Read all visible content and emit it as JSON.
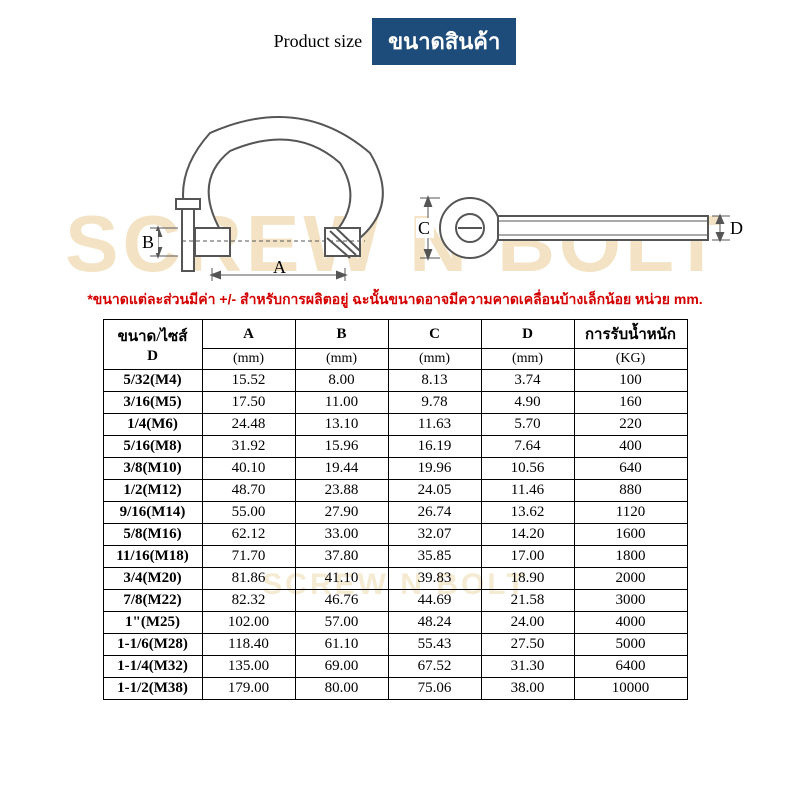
{
  "header": {
    "product_size_en": "Product size",
    "product_size_th": "ขนาดสินค้า"
  },
  "watermark": "SCREW N BOLT",
  "diagram": {
    "labels": {
      "A": "A",
      "B": "B",
      "C": "C",
      "D": "D"
    },
    "stroke": "#555555",
    "fill_hatch": "#cccccc"
  },
  "note": "*ขนาดแต่ละส่วนมีค่า +/- สำหรับการผลิตอยู่ ฉะนั้นขนาดอาจมีความคาดเคลื่อนบ้างเล็กน้อย หน่วย mm.",
  "table": {
    "head_size": "ขนาด/ไซส์\nD",
    "head_A": "A",
    "head_B": "B",
    "head_C": "C",
    "head_D": "D",
    "head_kg": "การรับน้ำหนัก",
    "unit_mm": "(mm)",
    "unit_kg": "(KG)",
    "rows": [
      {
        "size": "5/32(M4)",
        "A": "15.52",
        "B": "8.00",
        "C": "8.13",
        "D": "3.74",
        "KG": "100"
      },
      {
        "size": "3/16(M5)",
        "A": "17.50",
        "B": "11.00",
        "C": "9.78",
        "D": "4.90",
        "KG": "160"
      },
      {
        "size": "1/4(M6)",
        "A": "24.48",
        "B": "13.10",
        "C": "11.63",
        "D": "5.70",
        "KG": "220"
      },
      {
        "size": "5/16(M8)",
        "A": "31.92",
        "B": "15.96",
        "C": "16.19",
        "D": "7.64",
        "KG": "400"
      },
      {
        "size": "3/8(M10)",
        "A": "40.10",
        "B": "19.44",
        "C": "19.96",
        "D": "10.56",
        "KG": "640"
      },
      {
        "size": "1/2(M12)",
        "A": "48.70",
        "B": "23.88",
        "C": "24.05",
        "D": "11.46",
        "KG": "880"
      },
      {
        "size": "9/16(M14)",
        "A": "55.00",
        "B": "27.90",
        "C": "26.74",
        "D": "13.62",
        "KG": "1120"
      },
      {
        "size": "5/8(M16)",
        "A": "62.12",
        "B": "33.00",
        "C": "32.07",
        "D": "14.20",
        "KG": "1600"
      },
      {
        "size": "11/16(M18)",
        "A": "71.70",
        "B": "37.80",
        "C": "35.85",
        "D": "17.00",
        "KG": "1800"
      },
      {
        "size": "3/4(M20)",
        "A": "81.86",
        "B": "41.10",
        "C": "39.83",
        "D": "18.90",
        "KG": "2000"
      },
      {
        "size": "7/8(M22)",
        "A": "82.32",
        "B": "46.76",
        "C": "44.69",
        "D": "21.58",
        "KG": "3000"
      },
      {
        "size": "1\"(M25)",
        "A": "102.00",
        "B": "57.00",
        "C": "48.24",
        "D": "24.00",
        "KG": "4000"
      },
      {
        "size": "1-1/6(M28)",
        "A": "118.40",
        "B": "61.10",
        "C": "55.43",
        "D": "27.50",
        "KG": "5000"
      },
      {
        "size": "1-1/4(M32)",
        "A": "135.00",
        "B": "69.00",
        "C": "67.52",
        "D": "31.30",
        "KG": "6400"
      },
      {
        "size": "1-1/2(M38)",
        "A": "179.00",
        "B": "80.00",
        "C": "75.06",
        "D": "38.00",
        "KG": "10000"
      }
    ]
  },
  "colors": {
    "badge_bg": "#1e4c7a",
    "badge_fg": "#ffffff",
    "note_color": "#d40000",
    "watermark_color": "#f3e3c4",
    "border_color": "#000000",
    "background": "#ffffff"
  }
}
